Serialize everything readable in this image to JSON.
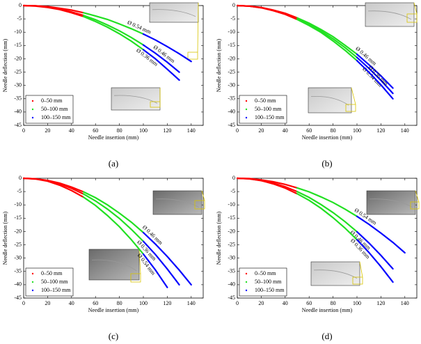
{
  "chart_data": [
    {
      "type": "line",
      "subtitle": "(a)",
      "x_label": "Needle insertion (mm)",
      "y_label": "Needle deflection (mm)",
      "x": [
        0,
        10,
        20,
        30,
        40,
        50,
        60,
        70,
        80,
        90,
        100,
        110,
        120,
        130,
        140
      ],
      "series": [
        {
          "name": "Ø 0.54 mm",
          "values": [
            0,
            -0.1,
            -0.4,
            -1.0,
            -1.7,
            -2.7,
            -3.9,
            -5.2,
            -6.9,
            -8.7,
            -10.7,
            -12.9,
            -15.4,
            -18.1,
            -21.0
          ]
        },
        {
          "name": "Ø 0.46 mm",
          "values": [
            0,
            -0.1,
            -0.6,
            -1.3,
            -2.4,
            -3.7,
            -5.3,
            -7.3,
            -9.5,
            -12.0,
            -14.8,
            -17.9,
            -21.3,
            -25.0,
            null
          ]
        },
        {
          "name": "Ø 0.36 mm",
          "values": [
            0,
            -0.2,
            -0.7,
            -1.5,
            -2.7,
            -4.1,
            -6.0,
            -8.1,
            -10.6,
            -13.4,
            -16.6,
            -20.0,
            -23.9,
            -28.0,
            null
          ]
        }
      ],
      "legend": [
        {
          "label": "0–50 mm",
          "range": [
            0,
            50
          ],
          "color": "#ff0000"
        },
        {
          "label": "50–100 mm",
          "range": [
            50,
            100
          ],
          "color": "#22e022"
        },
        {
          "label": "100–150 mm",
          "range": [
            100,
            150
          ],
          "color": "#0000ff"
        }
      ],
      "legend_position": "lower left",
      "xlim": [
        0,
        150
      ],
      "xticks": [
        0,
        20,
        40,
        60,
        80,
        100,
        120,
        140
      ],
      "ylim": [
        -45,
        0
      ],
      "yticks": [
        0,
        -5,
        -10,
        -15,
        -20,
        -25,
        -30,
        -35,
        -40,
        -45
      ]
    },
    {
      "type": "line",
      "subtitle": "(b)",
      "x_label": "Needle insertion (mm)",
      "y_label": "Needle deflection (mm)",
      "x": [
        0,
        10,
        20,
        30,
        40,
        50,
        60,
        70,
        80,
        90,
        100,
        110,
        120,
        130,
        140
      ],
      "series": [
        {
          "name": "Ø 0.46 mm",
          "values": [
            0,
            -0.2,
            -0.7,
            -1.7,
            -2.9,
            -4.6,
            -6.6,
            -9.0,
            -11.7,
            -14.9,
            -18.3,
            -22.2,
            -26.4,
            -31.0,
            null
          ]
        },
        {
          "name": "Ø 0.54 mm",
          "values": [
            0,
            -0.2,
            -0.8,
            -1.8,
            -3.1,
            -4.9,
            -7.0,
            -9.6,
            -12.5,
            -15.8,
            -19.5,
            -23.6,
            -28.1,
            -33.0,
            null
          ]
        },
        {
          "name": "Ø 0.36 mm",
          "values": [
            0,
            -0.2,
            -0.8,
            -1.9,
            -3.3,
            -5.2,
            -7.5,
            -10.1,
            -13.3,
            -16.8,
            -20.7,
            -25.1,
            -29.8,
            -35.0,
            null
          ]
        }
      ],
      "legend": [
        {
          "label": "0–50 mm",
          "range": [
            0,
            50
          ],
          "color": "#ff0000"
        },
        {
          "label": "50–100 mm",
          "range": [
            50,
            100
          ],
          "color": "#22e022"
        },
        {
          "label": "100–150 mm",
          "range": [
            100,
            150
          ],
          "color": "#0000ff"
        }
      ],
      "legend_position": "lower left",
      "xlim": [
        0,
        150
      ],
      "xticks": [
        0,
        20,
        40,
        60,
        80,
        100,
        120,
        140
      ],
      "ylim": [
        -45,
        0
      ],
      "yticks": [
        0,
        -5,
        -10,
        -15,
        -20,
        -25,
        -30,
        -35,
        -40,
        -45
      ]
    },
    {
      "type": "line",
      "subtitle": "(c)",
      "x_label": "Needle insertion (mm)",
      "y_label": "Needle deflection (mm)",
      "x": [
        0,
        10,
        20,
        30,
        40,
        50,
        60,
        70,
        80,
        90,
        100,
        110,
        120,
        130,
        140
      ],
      "series": [
        {
          "name": "Ø 0.46 mm",
          "values": [
            0,
            -0.2,
            -0.8,
            -1.8,
            -3.3,
            -5.1,
            -7.3,
            -10.0,
            -13.1,
            -16.5,
            -20.4,
            -24.7,
            -29.4,
            -34.5,
            -40.0
          ]
        },
        {
          "name": "Ø 0.36 mm",
          "values": [
            0,
            -0.2,
            -0.9,
            -2.1,
            -3.8,
            -5.9,
            -8.5,
            -11.6,
            -15.1,
            -19.2,
            -23.7,
            -28.6,
            -34.1,
            -40.0,
            null
          ]
        },
        {
          "name": "Ø 0.54 mm",
          "values": [
            0,
            -0.3,
            -1.1,
            -2.6,
            -4.6,
            -7.1,
            -10.2,
            -14.0,
            -18.2,
            -23.1,
            -28.5,
            -34.4,
            -41.0,
            null,
            null
          ]
        }
      ],
      "legend": [
        {
          "label": "0–50 mm",
          "range": [
            0,
            50
          ],
          "color": "#ff0000"
        },
        {
          "label": "50–100 mm",
          "range": [
            50,
            100
          ],
          "color": "#22e022"
        },
        {
          "label": "100–150 mm",
          "range": [
            100,
            150
          ],
          "color": "#0000ff"
        }
      ],
      "legend_position": "lower left",
      "xlim": [
        0,
        150
      ],
      "xticks": [
        0,
        20,
        40,
        60,
        80,
        100,
        120,
        140
      ],
      "ylim": [
        -45,
        0
      ],
      "yticks": [
        0,
        -5,
        -10,
        -15,
        -20,
        -25,
        -30,
        -35,
        -40,
        -45
      ]
    },
    {
      "type": "line",
      "subtitle": "(d)",
      "x_label": "Needle insertion (mm)",
      "y_label": "Needle deflection (mm)",
      "x": [
        0,
        10,
        20,
        30,
        40,
        50,
        60,
        70,
        80,
        90,
        100,
        110,
        120,
        130,
        140
      ],
      "series": [
        {
          "name": "Ø 0.54 mm",
          "values": [
            0,
            -0.1,
            -0.6,
            -1.3,
            -2.3,
            -3.6,
            -5.1,
            -7.0,
            -9.1,
            -11.6,
            -14.3,
            -17.3,
            -20.6,
            -24.1,
            -28.0
          ]
        },
        {
          "name": "Ø 0.46 mm",
          "values": [
            0,
            -0.2,
            -0.8,
            -1.8,
            -3.2,
            -5.0,
            -7.2,
            -9.9,
            -12.9,
            -16.3,
            -20.1,
            -24.3,
            -29.0,
            -34.0,
            null
          ]
        },
        {
          "name": "Ø 0.36 mm",
          "values": [
            0,
            -0.2,
            -0.9,
            -2.1,
            -3.7,
            -5.8,
            -8.3,
            -11.3,
            -14.8,
            -18.7,
            -23.1,
            -27.9,
            -33.2,
            -39.0,
            null
          ]
        }
      ],
      "legend": [
        {
          "label": "0–50 mm",
          "range": [
            0,
            50
          ],
          "color": "#ff0000"
        },
        {
          "label": "50–100 mm",
          "range": [
            50,
            100
          ],
          "color": "#22e022"
        },
        {
          "label": "100–150 mm",
          "range": [
            100,
            150
          ],
          "color": "#0000ff"
        }
      ],
      "legend_position": "lower left",
      "xlim": [
        0,
        150
      ],
      "xticks": [
        0,
        20,
        40,
        60,
        80,
        100,
        120,
        140
      ],
      "ylim": [
        -45,
        0
      ],
      "yticks": [
        0,
        -5,
        -10,
        -15,
        -20,
        -25,
        -30,
        -35,
        -40,
        -45
      ]
    }
  ]
}
